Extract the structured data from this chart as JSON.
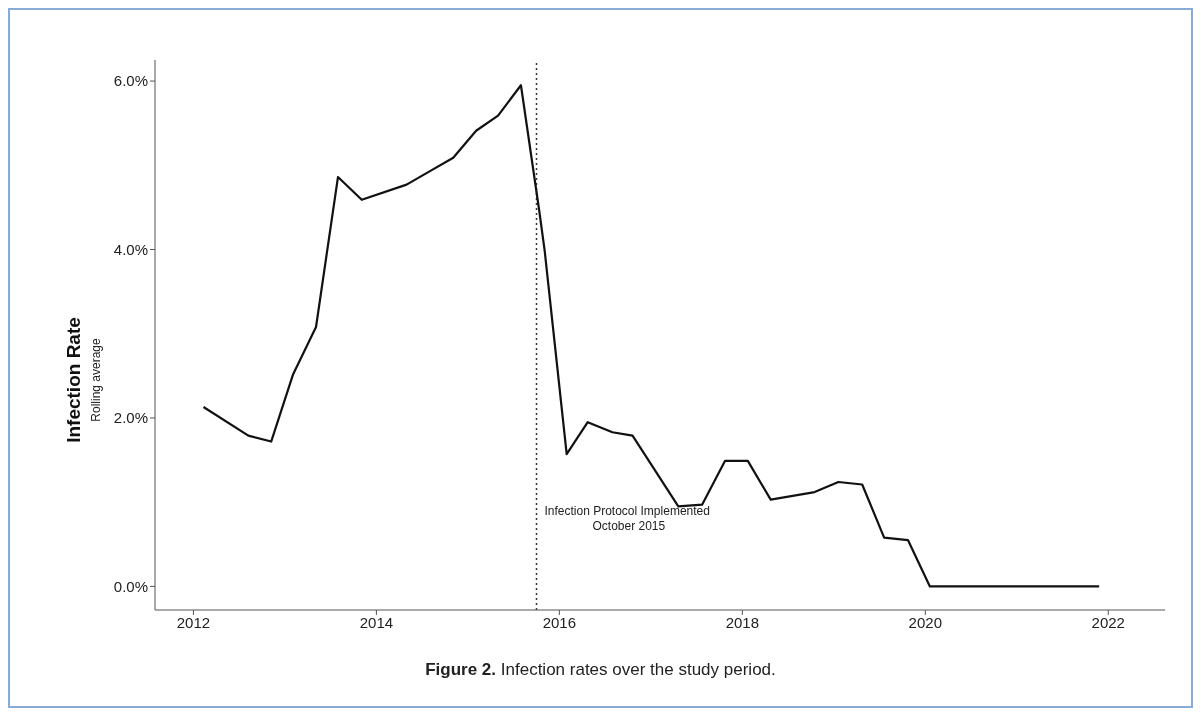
{
  "chart_data": {
    "type": "line",
    "title": "Figure 2. Infection rates over the study period.",
    "ylabel": "Infection Rate",
    "annotations": [
      "Rolling average"
    ],
    "x": [
      2012.11,
      2012.6,
      2012.85,
      2013.09,
      2013.34,
      2013.58,
      2013.84,
      2014.33,
      2014.6,
      2014.84,
      2015.09,
      2015.33,
      2015.58,
      2015.78,
      2015.84,
      2016.08,
      2016.31,
      2016.58,
      2016.8,
      2017.3,
      2017.56,
      2017.81,
      2018.06,
      2018.31,
      2018.79,
      2019.05,
      2019.31,
      2019.55,
      2019.81,
      2020.05,
      2021.9
    ],
    "series": [
      {
        "color": "#111111",
        "values": [
          2.13,
          1.79,
          1.72,
          2.52,
          3.08,
          4.86,
          4.59,
          4.77,
          4.94,
          5.09,
          5.41,
          5.59,
          5.95,
          4.46,
          3.98,
          1.57,
          1.95,
          1.83,
          1.79,
          0.95,
          0.97,
          1.49,
          1.49,
          1.03,
          1.12,
          1.24,
          1.21,
          0.58,
          0.55,
          0,
          0
        ]
      }
    ],
    "xlim": [
      2011.58,
      2022.62
    ],
    "xticks": [
      2012,
      2014,
      2016,
      2018,
      2020,
      2022
    ],
    "ylim": [
      -0.28,
      6.25
    ],
    "yticks": [
      {
        "value": 0,
        "label": "0.0%"
      },
      {
        "value": 2,
        "label": "2.0%"
      },
      {
        "value": 4,
        "label": "4.0%"
      },
      {
        "value": 6,
        "label": "6.0%"
      }
    ],
    "ref_lines": [
      {
        "axis": "x",
        "value": 2015.75,
        "label": "Infection Protocol Implemented\nOctober 2015",
        "line_style": "dotted",
        "color": "#333333"
      }
    ],
    "grid": false,
    "legend": false,
    "marker": "none",
    "line_style": "solid"
  }
}
